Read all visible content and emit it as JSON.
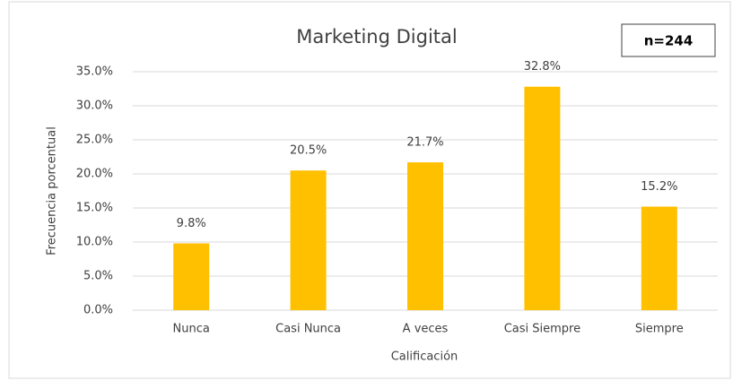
{
  "chart_data": {
    "type": "bar",
    "title": "Marketing Digital",
    "annotation": "n=244",
    "x_label": "Calificación",
    "y_label": "Frecuencia porcentual",
    "categories": [
      "Nunca",
      "Casi Nunca",
      "A veces",
      "Casi Siempre",
      "Siempre"
    ],
    "values": [
      9.8,
      20.5,
      21.7,
      32.8,
      15.2
    ],
    "value_labels": [
      "9.8%",
      "20.5%",
      "21.7%",
      "32.8%",
      "15.2%"
    ],
    "color": "#ffc000",
    "ylim": [
      0,
      35
    ],
    "yticks": [
      {
        "value": 0,
        "label": "0.0%"
      },
      {
        "value": 5,
        "label": "5.0%"
      },
      {
        "value": 10,
        "label": "10.0%"
      },
      {
        "value": 15,
        "label": "15.0%"
      },
      {
        "value": 20,
        "label": "20.0%"
      },
      {
        "value": 25,
        "label": "25.0%"
      },
      {
        "value": 30,
        "label": "30.0%"
      },
      {
        "value": 35,
        "label": "35.0%"
      }
    ],
    "grid": true
  }
}
